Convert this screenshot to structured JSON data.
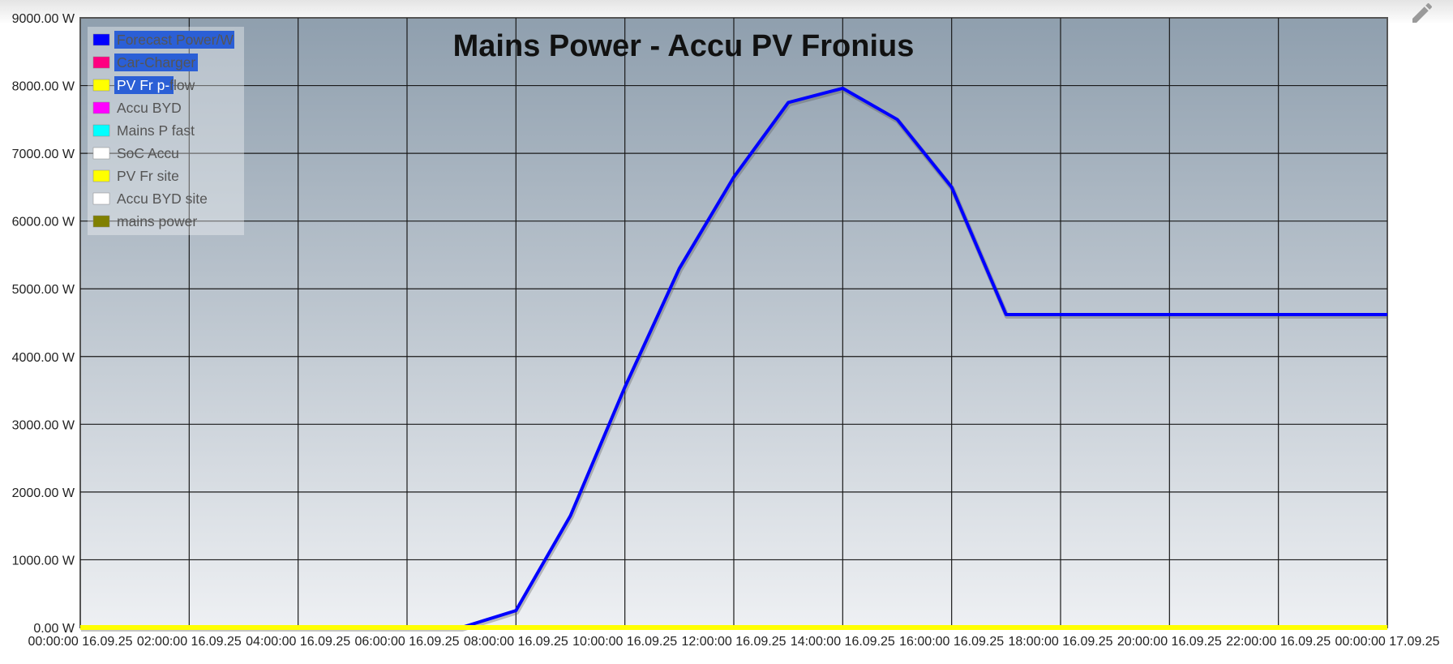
{
  "chart_data": {
    "type": "line",
    "title": "Mains Power - Accu PV Fronius",
    "xlabel": "",
    "ylabel": "",
    "ylim": [
      0,
      9000
    ],
    "xlim": [
      0,
      24
    ],
    "grid": true,
    "legend_position": "top-left",
    "y_ticks": [
      "0.00 W",
      "1000.00 W",
      "2000.00 W",
      "3000.00 W",
      "4000.00 W",
      "5000.00 W",
      "6000.00 W",
      "7000.00 W",
      "8000.00 W",
      "9000.00 W"
    ],
    "x_ticks": [
      {
        "hours": 0,
        "label": "00:00:00 16.09.25"
      },
      {
        "hours": 2,
        "label": "02:00:00 16.09.25"
      },
      {
        "hours": 4,
        "label": "04:00:00 16.09.25"
      },
      {
        "hours": 6,
        "label": "06:00:00 16.09.25"
      },
      {
        "hours": 8,
        "label": "08:00:00 16.09.25"
      },
      {
        "hours": 10,
        "label": "10:00:00 16.09.25"
      },
      {
        "hours": 12,
        "label": "12:00:00 16.09.25"
      },
      {
        "hours": 14,
        "label": "14:00:00 16.09.25"
      },
      {
        "hours": 16,
        "label": "16:00:00 16.09.25"
      },
      {
        "hours": 18,
        "label": "18:00:00 16.09.25"
      },
      {
        "hours": 20,
        "label": "20:00:00 16.09.25"
      },
      {
        "hours": 22,
        "label": "22:00:00 16.09.25"
      },
      {
        "hours": 24,
        "label": "00:00:00 17.09.25"
      }
    ],
    "series": [
      {
        "name": "Forecast Power/W",
        "color": "#0000ff",
        "highlighted": true,
        "points": [
          [
            0,
            0
          ],
          [
            7,
            0
          ],
          [
            8,
            250
          ],
          [
            9,
            1650
          ],
          [
            10,
            3550
          ],
          [
            11,
            5300
          ],
          [
            12,
            6650
          ],
          [
            13,
            7750
          ],
          [
            14,
            7960
          ],
          [
            15,
            7500
          ],
          [
            16,
            6500
          ],
          [
            17,
            4620
          ],
          [
            24,
            4620
          ]
        ]
      },
      {
        "name": "Car-Charger",
        "color": "#ff0080",
        "highlighted": true,
        "points": []
      },
      {
        "name": "PV Fr p-flow",
        "color": "#ffff00",
        "highlighted": true,
        "points": [
          [
            0,
            0
          ],
          [
            24,
            0
          ]
        ]
      },
      {
        "name": "Accu BYD",
        "color": "#ff00ff",
        "points": []
      },
      {
        "name": "Mains P fast",
        "color": "#00ffff",
        "points": []
      },
      {
        "name": "SoC Accu",
        "color": "#ffffff",
        "points": []
      },
      {
        "name": "PV Fr site",
        "color": "#ffff00",
        "points": []
      },
      {
        "name": "Accu BYD site",
        "color": "#ffffff",
        "points": []
      },
      {
        "name": "mains power",
        "color": "#808000",
        "points": []
      }
    ]
  },
  "toolbar": {
    "edit_icon": "pencil-icon"
  }
}
